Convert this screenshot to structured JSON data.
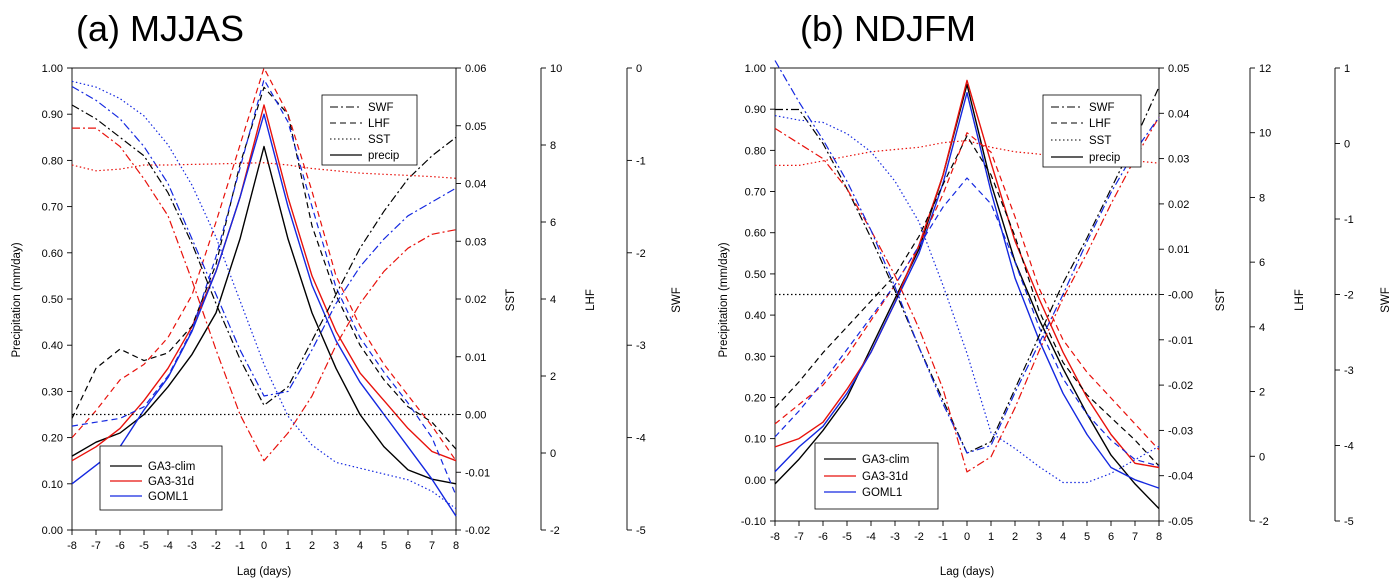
{
  "chart_data": [
    {
      "type": "line",
      "title": "(a) MJJAS",
      "xlabel": "Lag (days)",
      "x": [
        -8,
        -7,
        -6,
        -5,
        -4,
        -3,
        -2,
        -1,
        0,
        1,
        2,
        3,
        4,
        5,
        6,
        7,
        8
      ],
      "x_ticks": [
        "-8",
        "-7",
        "-6",
        "-5",
        "-4",
        "-3",
        "-2",
        "-1",
        "0",
        "1",
        "2",
        "3",
        "4",
        "5",
        "6",
        "7",
        "8"
      ],
      "axes": [
        {
          "key": "precip",
          "label": "Precipitation (mm/day)",
          "range": [
            0,
            1
          ],
          "ticks": [
            "0.00",
            "0.10",
            "0.20",
            "0.30",
            "0.40",
            "0.50",
            "0.60",
            "0.70",
            "0.80",
            "0.90",
            "1.00"
          ]
        },
        {
          "key": "SST",
          "label": "SST",
          "range": [
            -0.02,
            0.06
          ],
          "ticks": [
            "-0.02",
            "-0.01",
            "0.00",
            "0.01",
            "0.02",
            "0.03",
            "0.04",
            "0.05",
            "0.06"
          ]
        },
        {
          "key": "LHF",
          "label": "LHF",
          "range": [
            -2,
            10
          ],
          "ticks": [
            "-2",
            "0",
            "2",
            "4",
            "6",
            "8",
            "10"
          ]
        },
        {
          "key": "SWF",
          "label": "SWF",
          "range": [
            -5,
            0
          ],
          "ticks": [
            "-5",
            "-4",
            "-3",
            "-2",
            "-1",
            "0"
          ]
        }
      ],
      "model_legend": [
        "GA3-clim",
        "GA3-31d",
        "GOML1"
      ],
      "variable_legend": [
        "SWF",
        "LHF",
        "SST",
        "precip"
      ],
      "colors": {
        "GA3-clim": "#000000",
        "GA3-31d": "#e8120c",
        "GOML1": "#1428e0"
      },
      "series": [
        {
          "model": "GA3-clim",
          "var": "precip",
          "values": [
            0.16,
            0.19,
            0.21,
            0.25,
            0.31,
            0.38,
            0.47,
            0.63,
            0.83,
            0.63,
            0.47,
            0.35,
            0.25,
            0.18,
            0.13,
            0.11,
            0.1
          ]
        },
        {
          "model": "GA3-31d",
          "var": "precip",
          "values": [
            0.15,
            0.18,
            0.22,
            0.28,
            0.35,
            0.44,
            0.56,
            0.72,
            0.92,
            0.72,
            0.55,
            0.43,
            0.34,
            0.28,
            0.22,
            0.17,
            0.15
          ]
        },
        {
          "model": "GOML1",
          "var": "precip",
          "values": [
            0.1,
            0.14,
            0.18,
            0.26,
            0.33,
            0.43,
            0.56,
            0.72,
            0.9,
            0.7,
            0.53,
            0.41,
            0.32,
            0.25,
            0.18,
            0.11,
            0.03
          ]
        },
        {
          "model": "GA3-clim",
          "var": "LHF",
          "values": [
            0.9,
            2.2,
            2.7,
            2.4,
            2.6,
            3.3,
            4.9,
            7.5,
            9.5,
            8.8,
            5.9,
            4.1,
            2.8,
            1.9,
            1.2,
            0.8,
            0.1
          ]
        },
        {
          "model": "GA3-31d",
          "var": "LHF",
          "values": [
            0.4,
            1.1,
            1.9,
            2.3,
            3.0,
            4.1,
            6.0,
            8.0,
            10.0,
            8.8,
            6.8,
            4.6,
            3.3,
            2.3,
            1.5,
            0.7,
            -0.2
          ]
        },
        {
          "model": "GOML1",
          "var": "LHF",
          "values": [
            0.7,
            0.8,
            0.9,
            1.2,
            2.0,
            3.2,
            5.1,
            7.4,
            9.7,
            8.6,
            6.4,
            4.3,
            3.0,
            2.1,
            1.3,
            0.4,
            -1.1
          ]
        },
        {
          "model": "GA3-clim",
          "var": "SWF",
          "values": [
            -0.4,
            -0.55,
            -0.75,
            -0.95,
            -1.35,
            -1.9,
            -2.55,
            -3.15,
            -3.65,
            -3.45,
            -2.95,
            -2.45,
            -1.95,
            -1.55,
            -1.2,
            -0.95,
            -0.75
          ]
        },
        {
          "model": "GA3-31d",
          "var": "SWF",
          "values": [
            -0.65,
            -0.65,
            -0.85,
            -1.2,
            -1.6,
            -2.3,
            -3.05,
            -3.75,
            -4.25,
            -3.95,
            -3.55,
            -3.0,
            -2.55,
            -2.2,
            -1.95,
            -1.8,
            -1.75
          ]
        },
        {
          "model": "GOML1",
          "var": "SWF",
          "values": [
            -0.2,
            -0.35,
            -0.55,
            -0.85,
            -1.25,
            -1.85,
            -2.45,
            -3.05,
            -3.55,
            -3.5,
            -3.05,
            -2.55,
            -2.15,
            -1.85,
            -1.6,
            -1.45,
            -1.3
          ]
        },
        {
          "model": "GA3-31d",
          "var": "SST",
          "values": [
            0.0432,
            0.0422,
            0.0425,
            0.0432,
            0.0432,
            0.0433,
            0.0434,
            0.0435,
            0.0436,
            0.0432,
            0.0426,
            0.0422,
            0.0418,
            0.0416,
            0.0414,
            0.0412,
            0.0409
          ]
        },
        {
          "model": "GOML1",
          "var": "SST",
          "values": [
            0.0577,
            0.0567,
            0.0547,
            0.0517,
            0.0467,
            0.0397,
            0.0307,
            0.0197,
            0.0087,
            -0.0003,
            -0.0053,
            -0.0083,
            -0.0093,
            -0.0103,
            -0.0113,
            -0.0133,
            -0.0163
          ]
        },
        {
          "model": "GA3-clim",
          "var": "SST",
          "values": [
            0,
            0,
            0,
            0,
            0,
            0,
            0,
            0,
            0,
            0,
            0,
            0,
            0,
            0,
            0,
            0,
            0
          ]
        }
      ]
    },
    {
      "type": "line",
      "title": "(b) NDJFM",
      "xlabel": "Lag (days)",
      "x": [
        -8,
        -7,
        -6,
        -5,
        -4,
        -3,
        -2,
        -1,
        0,
        1,
        2,
        3,
        4,
        5,
        6,
        7,
        8
      ],
      "x_ticks": [
        "-8",
        "-7",
        "-6",
        "-5",
        "-4",
        "-3",
        "-2",
        "-1",
        "0",
        "1",
        "2",
        "3",
        "4",
        "5",
        "6",
        "7",
        "8"
      ],
      "axes": [
        {
          "key": "precip",
          "label": "Precipitation (mm/day)",
          "range": [
            -0.1,
            1
          ],
          "ticks": [
            "-0.10",
            "0.00",
            "0.10",
            "0.20",
            "0.30",
            "0.40",
            "0.50",
            "0.60",
            "0.70",
            "0.80",
            "0.90",
            "1.00"
          ]
        },
        {
          "key": "SST",
          "label": "SST",
          "range": [
            -0.05,
            0.05
          ],
          "ticks": [
            "-0.05",
            "-0.04",
            "-0.03",
            "-0.02",
            "-0.01",
            "-0.00",
            "0.01",
            "0.02",
            "0.03",
            "0.04",
            "0.05"
          ]
        },
        {
          "key": "LHF",
          "label": "LHF",
          "range": [
            -2,
            12
          ],
          "ticks": [
            "-2",
            "0",
            "2",
            "4",
            "6",
            "8",
            "10",
            "12"
          ]
        },
        {
          "key": "SWF",
          "label": "SWF",
          "range": [
            -5,
            1
          ],
          "ticks": [
            "-5",
            "-4",
            "-3",
            "-2",
            "-1",
            "0",
            "1"
          ]
        }
      ],
      "model_legend": [
        "GA3-clim",
        "GA3-31d",
        "GOML1"
      ],
      "variable_legend": [
        "SWF",
        "LHF",
        "SST",
        "precip"
      ],
      "colors": {
        "GA3-clim": "#000000",
        "GA3-31d": "#e8120c",
        "GOML1": "#1428e0"
      },
      "series": [
        {
          "model": "GA3-clim",
          "var": "precip",
          "values": [
            -0.01,
            0.05,
            0.12,
            0.2,
            0.32,
            0.44,
            0.56,
            0.74,
            0.96,
            0.72,
            0.53,
            0.39,
            0.27,
            0.16,
            0.06,
            -0.01,
            -0.07
          ]
        },
        {
          "model": "GA3-31d",
          "var": "precip",
          "values": [
            0.08,
            0.1,
            0.14,
            0.22,
            0.31,
            0.43,
            0.57,
            0.74,
            0.97,
            0.77,
            0.58,
            0.44,
            0.31,
            0.2,
            0.11,
            0.04,
            0.03
          ]
        },
        {
          "model": "GOML1",
          "var": "precip",
          "values": [
            0.02,
            0.08,
            0.13,
            0.21,
            0.31,
            0.43,
            0.55,
            0.72,
            0.94,
            0.7,
            0.49,
            0.34,
            0.21,
            0.11,
            0.03,
            0.0,
            -0.02
          ]
        },
        {
          "model": "GA3-clim",
          "var": "LHF",
          "values": [
            1.5,
            2.3,
            3.2,
            4.0,
            4.8,
            5.6,
            6.8,
            8.4,
            9.9,
            8.7,
            6.8,
            4.5,
            2.9,
            1.9,
            1.2,
            0.5,
            -0.3
          ]
        },
        {
          "model": "GA3-31d",
          "var": "LHF",
          "values": [
            1.0,
            1.6,
            2.2,
            3.1,
            4.2,
            5.3,
            6.5,
            8.1,
            10.0,
            9.4,
            7.4,
            5.2,
            3.6,
            2.6,
            1.8,
            1.0,
            0.2
          ]
        },
        {
          "model": "GOML1",
          "var": "LHF",
          "values": [
            0.6,
            1.4,
            2.3,
            3.3,
            4.3,
            5.3,
            6.5,
            7.7,
            8.6,
            7.8,
            6.0,
            4.0,
            2.4,
            1.3,
            0.5,
            -0.1,
            -0.3
          ]
        },
        {
          "model": "GA3-clim",
          "var": "SWF",
          "values": [
            0.45,
            0.45,
            0.0,
            -0.6,
            -1.25,
            -1.95,
            -2.7,
            -3.4,
            -4.1,
            -3.95,
            -3.25,
            -2.55,
            -1.85,
            -1.25,
            -0.6,
            0.05,
            0.75
          ]
        },
        {
          "model": "GA3-31d",
          "var": "SWF",
          "values": [
            0.2,
            0.0,
            -0.2,
            -0.6,
            -1.15,
            -1.75,
            -2.45,
            -3.25,
            -4.35,
            -4.15,
            -3.5,
            -2.75,
            -2.05,
            -1.45,
            -0.8,
            -0.2,
            0.35
          ]
        },
        {
          "model": "GOML1",
          "var": "SWF",
          "values": [
            1.1,
            0.55,
            0.05,
            -0.5,
            -1.15,
            -1.9,
            -2.7,
            -3.45,
            -4.1,
            -4.0,
            -3.3,
            -2.65,
            -2.0,
            -1.3,
            -0.65,
            -0.1,
            0.35
          ]
        },
        {
          "model": "GA3-31d",
          "var": "SST",
          "values": [
            0.0285,
            0.0285,
            0.0295,
            0.0305,
            0.0315,
            0.032,
            0.0325,
            0.0335,
            0.034,
            0.0325,
            0.0315,
            0.031,
            0.03,
            0.0295,
            0.0295,
            0.0295,
            0.029
          ]
        },
        {
          "model": "GOML1",
          "var": "SST",
          "values": [
            0.0395,
            0.0385,
            0.038,
            0.0355,
            0.0315,
            0.025,
            0.016,
            0.002,
            -0.013,
            -0.0305,
            -0.034,
            -0.038,
            -0.0415,
            -0.0415,
            -0.0395,
            -0.0365,
            -0.0335
          ]
        },
        {
          "model": "GA3-clim",
          "var": "SST",
          "values": [
            0,
            0,
            0,
            0,
            0,
            0,
            0,
            0,
            0,
            0,
            0,
            0,
            0,
            0,
            0,
            0,
            0
          ]
        }
      ]
    }
  ]
}
